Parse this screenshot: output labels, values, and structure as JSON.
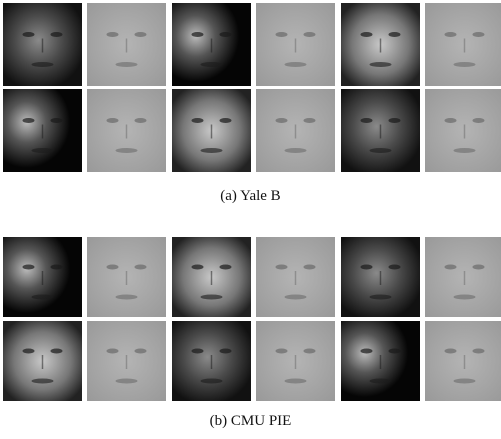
{
  "figures": [
    {
      "caption": "(a) Yale B"
    },
    {
      "caption": "(b) CMU PIE"
    }
  ]
}
